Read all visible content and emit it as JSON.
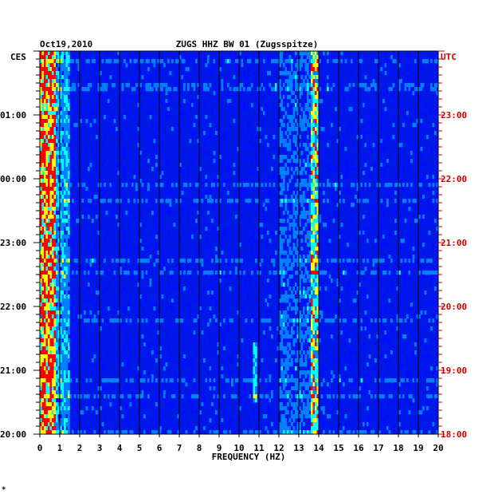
{
  "header": {
    "date": "Oct19,2010",
    "station": "ZUGS HHZ BW 01 (Zugsspitze)",
    "left_zone": "CES",
    "right_zone": "UTC"
  },
  "footer": {
    "corner_mark": "*"
  },
  "colors": {
    "background": "#ffffff",
    "right_axis_text": "#cc0000",
    "left_axis_text": "#000000",
    "grid": "#000000",
    "colormap": [
      "#0000a0",
      "#0010ff",
      "#0080ff",
      "#00ffff",
      "#ffff00",
      "#ff0000"
    ]
  },
  "chart_data": {
    "type": "heatmap",
    "title": "ZUGS HHZ BW 01 (Zugsspitze)",
    "xlabel": "FREQUENCY (HZ)",
    "ylabel": "",
    "xlim": [
      0,
      20
    ],
    "x_ticks": [
      "0",
      "1",
      "2",
      "3",
      "4",
      "5",
      "6",
      "7",
      "8",
      "9",
      "10",
      "11",
      "12",
      "13",
      "14",
      "15",
      "16",
      "17",
      "18",
      "19",
      "20"
    ],
    "y_ticks_left": [
      "20:00",
      "21:00",
      "22:00",
      "23:00",
      "00:00",
      "01:00"
    ],
    "y_ticks_right": [
      "18:00",
      "19:00",
      "20:00",
      "21:00",
      "22:00",
      "23:00"
    ],
    "colorscale": "blue-cyan-yellow-red (low to high power)",
    "features": {
      "strong_low_frequency_band_hz": [
        0,
        0.8
      ],
      "persistent_line_hz": 13.8,
      "secondary_band_hz": [
        12,
        14
      ],
      "intermittent_line_hz": 10.8
    },
    "grid": true
  }
}
